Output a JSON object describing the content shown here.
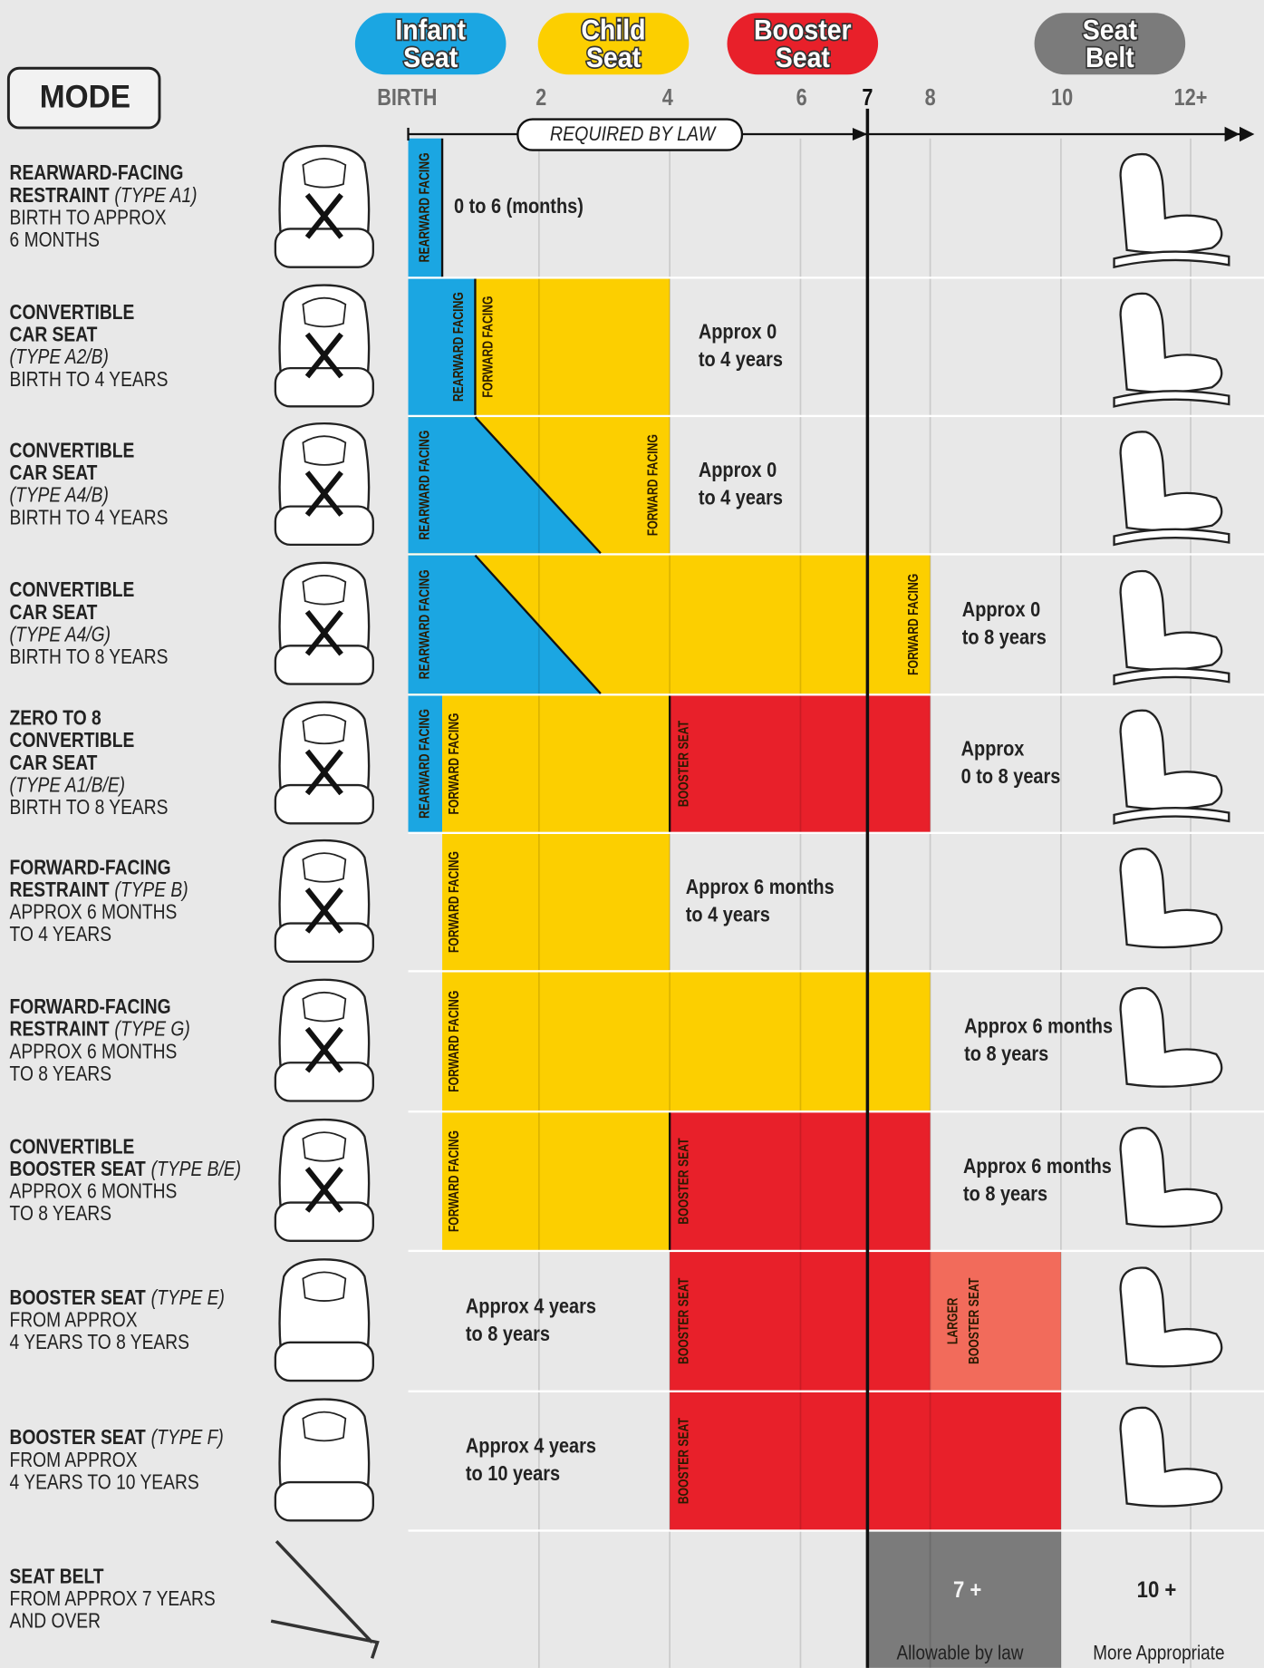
{
  "legend": [
    [
      "Infant",
      "Seat"
    ],
    [
      "Child",
      "Seat"
    ],
    [
      "Booster",
      "Seat"
    ],
    [
      "Seat",
      "Belt"
    ]
  ],
  "mode": "MODE",
  "ages": [
    "BIRTH",
    "2",
    "4",
    "6",
    "7",
    "8",
    "10",
    "12+"
  ],
  "law": "REQUIRED BY LAW",
  "rows": [
    {
      "title": [
        "REARWARD-FACING",
        "RESTRAINT"
      ],
      "type": "(TYPE A1)",
      "desc": [
        "BIRTH TO APPROX",
        "6 MONTHS"
      ],
      "bars": [
        [
          "REARWARD FACING"
        ]
      ],
      "note": [
        "0 to 6 (months)"
      ]
    },
    {
      "title": [
        "CONVERTIBLE",
        "CAR SEAT"
      ],
      "type": "(TYPE A2/B)",
      "desc": [
        "BIRTH TO 4 YEARS"
      ],
      "bars": [
        [
          "REARWARD FACING"
        ],
        [
          "FORWARD FACING"
        ]
      ],
      "note": [
        "Approx 0",
        "to 4 years"
      ]
    },
    {
      "title": [
        "CONVERTIBLE",
        "CAR SEAT"
      ],
      "type": "(TYPE A4/B)",
      "desc": [
        "BIRTH TO 4 YEARS"
      ],
      "bars": [
        [
          "REARWARD FACING"
        ],
        [
          "FORWARD FACING"
        ]
      ],
      "note": [
        "Approx 0",
        "to 4 years"
      ]
    },
    {
      "title": [
        "CONVERTIBLE",
        "CAR SEAT"
      ],
      "type": "(TYPE A4/G)",
      "desc": [
        "BIRTH TO 8 YEARS"
      ],
      "bars": [
        [
          "REARWARD FACING"
        ],
        [
          "FORWARD FACING"
        ]
      ],
      "note": [
        "Approx 0",
        "to 8 years"
      ]
    },
    {
      "title": [
        "ZERO TO 8",
        "CONVERTIBLE",
        "CAR SEAT"
      ],
      "type": "(TYPE A1/B/E)",
      "desc": [
        "BIRTH TO 8 YEARS"
      ],
      "bars": [
        [
          "REARWARD FACING"
        ],
        [
          "FORWARD FACING"
        ],
        [
          "BOOSTER SEAT"
        ]
      ],
      "note": [
        "Approx",
        "0 to 8 years"
      ]
    },
    {
      "title": [
        "FORWARD-FACING",
        "RESTRAINT"
      ],
      "type": "(TYPE B)",
      "desc": [
        "APPROX 6 MONTHS",
        "TO 4 YEARS"
      ],
      "bars": [
        [
          "FORWARD FACING"
        ]
      ],
      "note": [
        "Approx 6 months",
        "to 4 years"
      ]
    },
    {
      "title": [
        "FORWARD-FACING",
        "RESTRAINT"
      ],
      "type": "(TYPE G)",
      "desc": [
        "APPROX 6 MONTHS",
        "TO 8 YEARS"
      ],
      "bars": [
        [
          "FORWARD FACING"
        ]
      ],
      "note": [
        "Approx 6 months",
        "to 8 years"
      ]
    },
    {
      "title": [
        "CONVERTIBLE",
        "BOOSTER SEAT"
      ],
      "type": "(TYPE B/E)",
      "desc": [
        "APPROX 6 MONTHS",
        "TO 8 YEARS"
      ],
      "bars": [
        [
          "FORWARD FACING"
        ],
        [
          "BOOSTER SEAT"
        ]
      ],
      "note": [
        "Approx 6 months",
        "to 8 years"
      ]
    },
    {
      "title": [
        "BOOSTER SEAT"
      ],
      "type": "(TYPE E)",
      "desc": [
        "FROM APPROX",
        "4 YEARS TO 8 YEARS"
      ],
      "bars": [
        [
          "BOOSTER SEAT"
        ],
        [
          "LARGER",
          "BOOSTER SEAT"
        ]
      ],
      "note": [
        "Approx 4 years",
        "to 8 years"
      ]
    },
    {
      "title": [
        "BOOSTER SEAT"
      ],
      "type": "(TYPE F)",
      "desc": [
        "FROM APPROX",
        "4 YEARS TO 10 YEARS"
      ],
      "bars": [
        [
          "BOOSTER SEAT"
        ]
      ],
      "note": [
        "Approx 4 years",
        "to 10 years"
      ]
    },
    {
      "title": [
        "SEAT BELT"
      ],
      "desc": [
        "FROM APPROX 7 YEARS",
        "AND OVER"
      ],
      "note": [
        "7 +",
        "10 +"
      ]
    }
  ],
  "footer": {
    "allowable": "Allowable by law",
    "appropriate": "More Appropriate"
  }
}
